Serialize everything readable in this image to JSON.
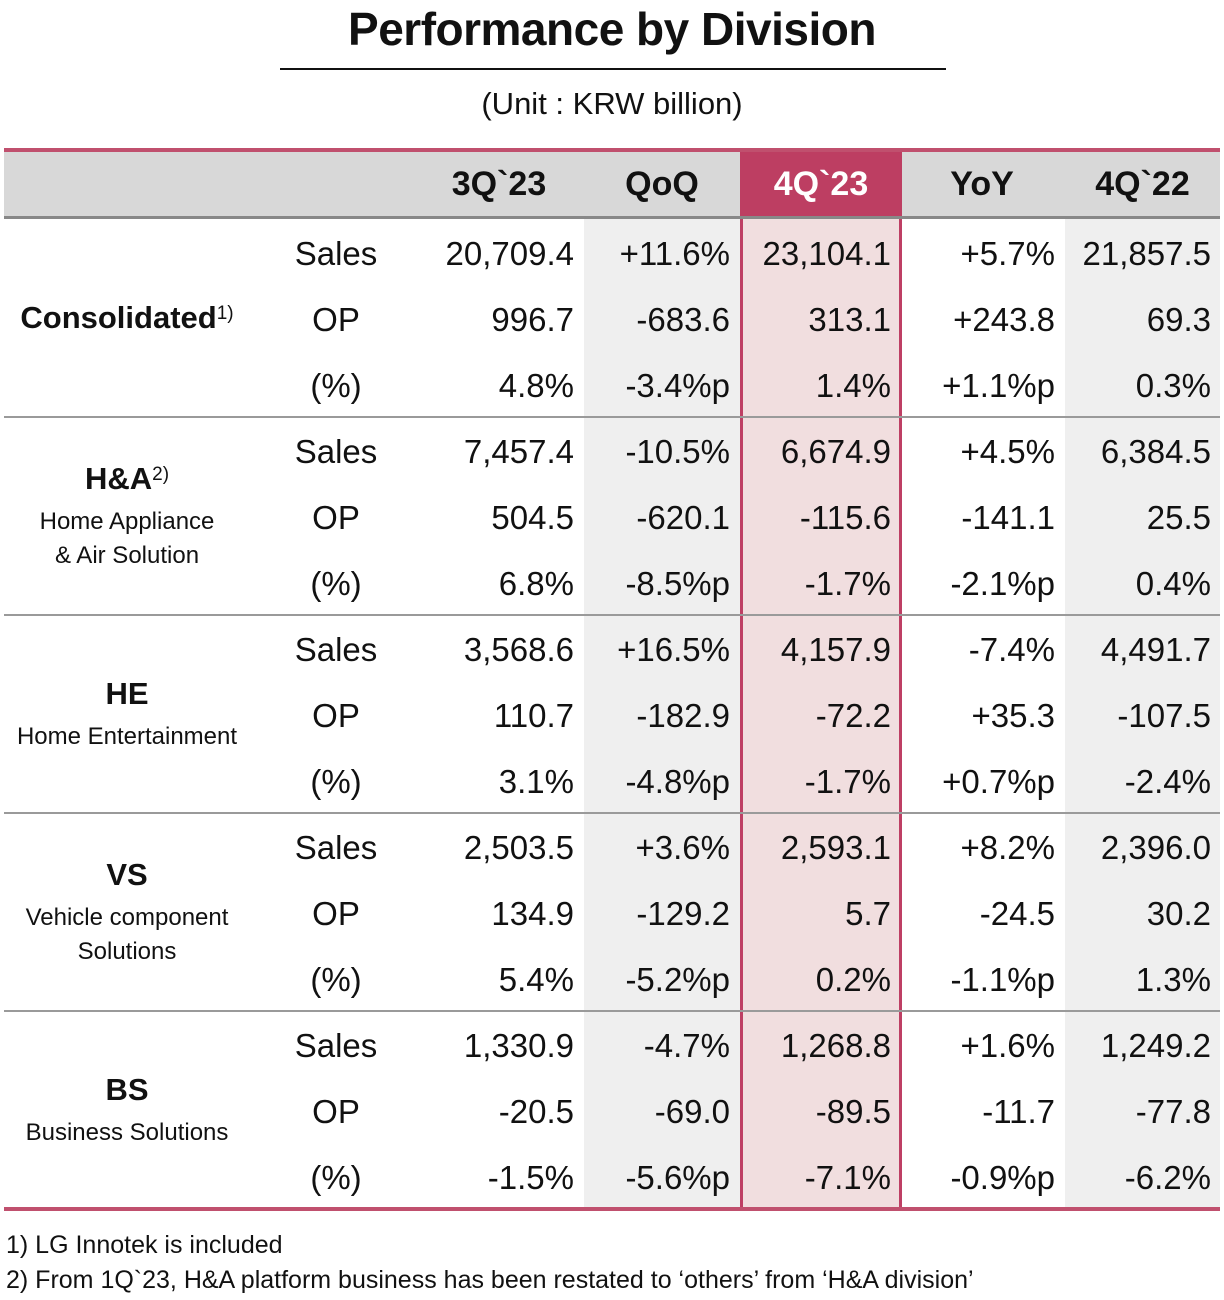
{
  "title": "Performance by Division",
  "unit": "(Unit : KRW billion)",
  "headers": [
    "3Q`23",
    "QoQ",
    "4Q`23",
    "YoY",
    "4Q`22"
  ],
  "colors": {
    "accent": "#bd3e62",
    "highlight_bg": "#f1dedf",
    "header_bg": "#d8d8d8",
    "shade_bg": "#efefef"
  },
  "groups": [
    {
      "name": "Consolidated",
      "sup": "1)",
      "sub": [],
      "rows": [
        {
          "metric": "Sales",
          "values": [
            "20,709.4",
            "+11.6%",
            "23,104.1",
            "+5.7%",
            "21,857.5"
          ]
        },
        {
          "metric": "OP",
          "values": [
            "996.7",
            "-683.6",
            "313.1",
            "+243.8",
            "69.3"
          ]
        },
        {
          "metric": "(%)",
          "values": [
            "4.8%",
            "-3.4%p",
            "1.4%",
            "+1.1%p",
            "0.3%"
          ]
        }
      ]
    },
    {
      "name": "H&A",
      "sup": "2)",
      "sub": [
        "Home Appliance",
        "& Air Solution"
      ],
      "rows": [
        {
          "metric": "Sales",
          "values": [
            "7,457.4",
            "-10.5%",
            "6,674.9",
            "+4.5%",
            "6,384.5"
          ]
        },
        {
          "metric": "OP",
          "values": [
            "504.5",
            "-620.1",
            "-115.6",
            "-141.1",
            "25.5"
          ]
        },
        {
          "metric": "(%)",
          "values": [
            "6.8%",
            "-8.5%p",
            "-1.7%",
            "-2.1%p",
            "0.4%"
          ]
        }
      ]
    },
    {
      "name": "HE",
      "sup": "",
      "sub": [
        "Home Entertainment"
      ],
      "rows": [
        {
          "metric": "Sales",
          "values": [
            "3,568.6",
            "+16.5%",
            "4,157.9",
            "-7.4%",
            "4,491.7"
          ]
        },
        {
          "metric": "OP",
          "values": [
            "110.7",
            "-182.9",
            "-72.2",
            "+35.3",
            "-107.5"
          ]
        },
        {
          "metric": "(%)",
          "values": [
            "3.1%",
            "-4.8%p",
            "-1.7%",
            "+0.7%p",
            "-2.4%"
          ]
        }
      ]
    },
    {
      "name": "VS",
      "sup": "",
      "sub": [
        "Vehicle component",
        "Solutions"
      ],
      "rows": [
        {
          "metric": "Sales",
          "values": [
            "2,503.5",
            "+3.6%",
            "2,593.1",
            "+8.2%",
            "2,396.0"
          ]
        },
        {
          "metric": "OP",
          "values": [
            "134.9",
            "-129.2",
            "5.7",
            "-24.5",
            "30.2"
          ]
        },
        {
          "metric": "(%)",
          "values": [
            "5.4%",
            "-5.2%p",
            "0.2%",
            "-1.1%p",
            "1.3%"
          ]
        }
      ]
    },
    {
      "name": "BS",
      "sup": "",
      "sub": [
        "Business Solutions"
      ],
      "rows": [
        {
          "metric": "Sales",
          "values": [
            "1,330.9",
            "-4.7%",
            "1,268.8",
            "+1.6%",
            "1,249.2"
          ]
        },
        {
          "metric": "OP",
          "values": [
            "-20.5",
            "-69.0",
            "-89.5",
            "-11.7",
            "-77.8"
          ]
        },
        {
          "metric": "(%)",
          "values": [
            "-1.5%",
            "-5.6%p",
            "-7.1%",
            "-0.9%p",
            "-6.2%"
          ]
        }
      ]
    }
  ],
  "footnotes": [
    "1) LG Innotek is included",
    "2) From 1Q`23, H&A platform business has been restated to ‘others’ from ‘H&A division’"
  ]
}
